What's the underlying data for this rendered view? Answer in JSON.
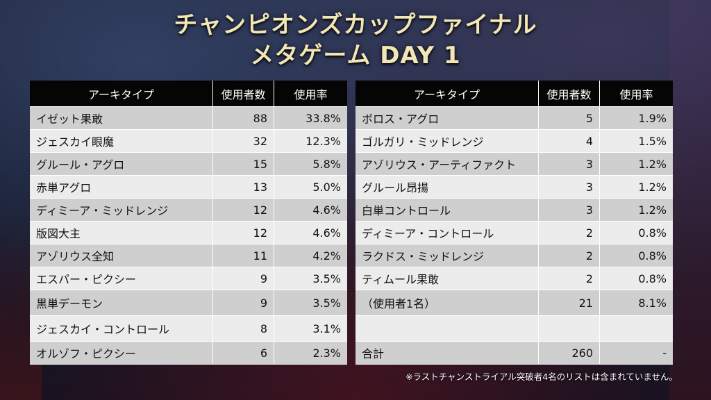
{
  "title": {
    "line1": "チャンピオンズカップファイナル",
    "line2": "メタゲーム DAY 1"
  },
  "table_left": {
    "headers": [
      "アーキタイプ",
      "使用者数",
      "使用率"
    ],
    "rows": [
      {
        "archetype": "イゼット果敢",
        "count": "88",
        "rate": "33.8%"
      },
      {
        "archetype": "ジェスカイ眼魔",
        "count": "32",
        "rate": "12.3%"
      },
      {
        "archetype": "グルール・アグロ",
        "count": "15",
        "rate": "5.8%"
      },
      {
        "archetype": "赤単アグロ",
        "count": "13",
        "rate": "5.0%"
      },
      {
        "archetype": "ディミーア・ミッドレンジ",
        "count": "12",
        "rate": "4.6%"
      },
      {
        "archetype": "版図大主",
        "count": "12",
        "rate": "4.6%"
      },
      {
        "archetype": "アゾリウス全知",
        "count": "11",
        "rate": "4.2%"
      },
      {
        "archetype": "エスパー・ピクシー",
        "count": "9",
        "rate": "3.5%"
      },
      {
        "archetype": "黒単デーモン",
        "count": "9",
        "rate": "3.5%"
      },
      {
        "archetype": "ジェスカイ・コントロール",
        "count": "8",
        "rate": "3.1%"
      },
      {
        "archetype": "オルゾフ・ピクシー",
        "count": "6",
        "rate": "2.3%"
      }
    ]
  },
  "table_right": {
    "headers": [
      "アーキタイプ",
      "使用者数",
      "使用率"
    ],
    "rows": [
      {
        "archetype": "ボロス・アグロ",
        "count": "5",
        "rate": "1.9%"
      },
      {
        "archetype": "ゴルガリ・ミッドレンジ",
        "count": "4",
        "rate": "1.5%"
      },
      {
        "archetype": "アゾリウス・アーティファクト",
        "count": "3",
        "rate": "1.2%"
      },
      {
        "archetype": "グルール昂揚",
        "count": "3",
        "rate": "1.2%"
      },
      {
        "archetype": "白単コントロール",
        "count": "3",
        "rate": "1.2%"
      },
      {
        "archetype": "ディミーア・コントロール",
        "count": "2",
        "rate": "0.8%"
      },
      {
        "archetype": "ラクドス・ミッドレンジ",
        "count": "2",
        "rate": "0.8%"
      },
      {
        "archetype": "ティムール果敢",
        "count": "2",
        "rate": "0.8%"
      },
      {
        "archetype": "（使用者1名）",
        "count": "21",
        "rate": "8.1%"
      },
      {
        "archetype": "",
        "count": "",
        "rate": ""
      },
      {
        "archetype": "合計",
        "count": "260",
        "rate": "-"
      }
    ]
  },
  "footnote": "※ラストチャンストライアル突破者4名のリストは含まれていません。",
  "colors": {
    "title": "#f3e6b6",
    "header_bg": "#050505",
    "row_odd": "#cfcfcf",
    "row_even": "#ececec"
  }
}
